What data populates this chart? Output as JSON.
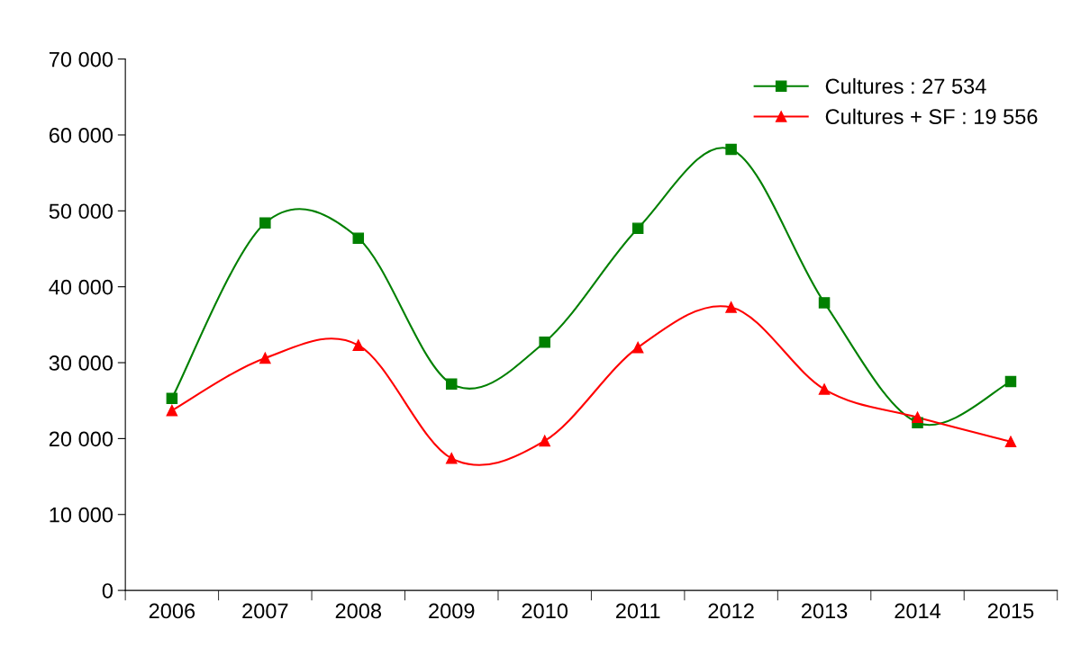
{
  "chart_data": {
    "type": "line",
    "categories": [
      "2006",
      "2007",
      "2008",
      "2009",
      "2010",
      "2011",
      "2012",
      "2013",
      "2014",
      "2015"
    ],
    "series": [
      {
        "name": "Cultures : 27 534",
        "color": "#008000",
        "marker": "square",
        "values": [
          25300,
          48400,
          46400,
          27200,
          32700,
          47700,
          58100,
          37900,
          22100,
          27500
        ]
      },
      {
        "name": "Cultures + SF : 19 556",
        "color": "#ff0000",
        "marker": "triangle",
        "values": [
          23700,
          30600,
          32300,
          17400,
          19700,
          32000,
          37300,
          26500,
          22800,
          19600
        ]
      }
    ],
    "ylim": [
      0,
      70000
    ],
    "yticks": [
      {
        "value": 0,
        "label": "0"
      },
      {
        "value": 10000,
        "label": "10 000"
      },
      {
        "value": 20000,
        "label": "20 000"
      },
      {
        "value": 30000,
        "label": "30 000"
      },
      {
        "value": 40000,
        "label": "40 000"
      },
      {
        "value": 50000,
        "label": "50 000"
      },
      {
        "value": 60000,
        "label": "60 000"
      },
      {
        "value": 70000,
        "label": "70 000"
      }
    ],
    "grid": false,
    "legend": "top right",
    "line_style": "solid"
  }
}
